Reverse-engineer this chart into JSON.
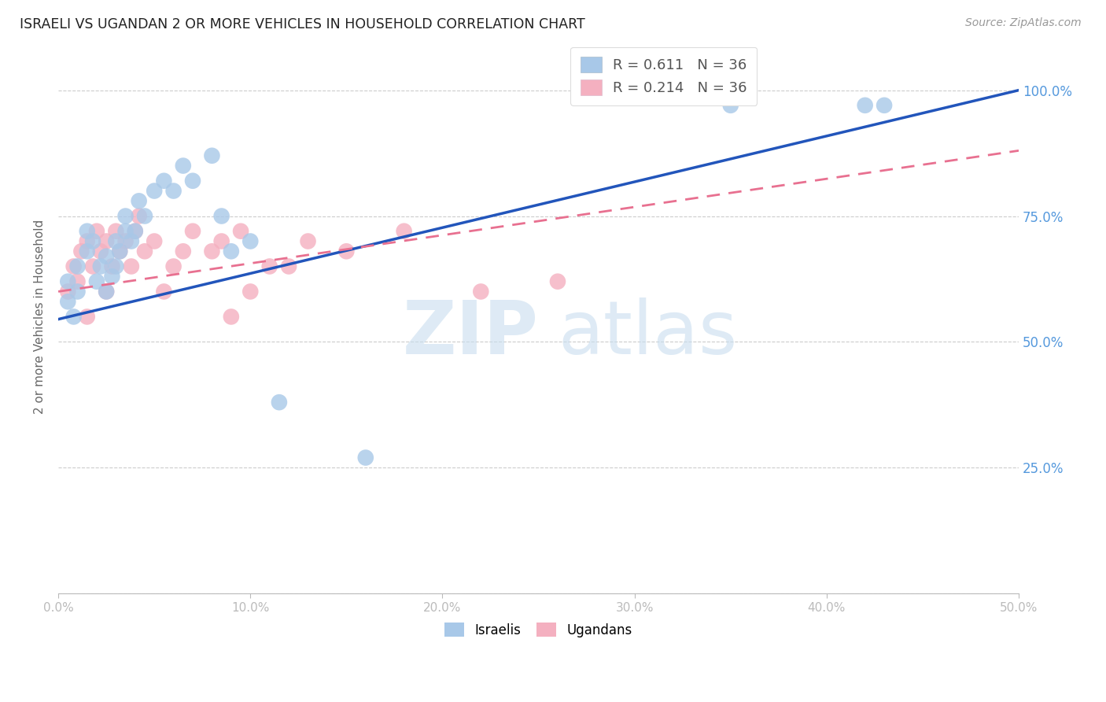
{
  "title": "ISRAELI VS UGANDAN 2 OR MORE VEHICLES IN HOUSEHOLD CORRELATION CHART",
  "source": "Source: ZipAtlas.com",
  "ylabel": "2 or more Vehicles in Household",
  "xmin": 0.0,
  "xmax": 0.5,
  "ymin": 0.0,
  "ymax": 1.1,
  "yticks": [
    0.0,
    0.25,
    0.5,
    0.75,
    1.0
  ],
  "ytick_labels": [
    "",
    "25.0%",
    "50.0%",
    "75.0%",
    "100.0%"
  ],
  "xticks": [
    0.0,
    0.1,
    0.2,
    0.3,
    0.4,
    0.5
  ],
  "xtick_labels": [
    "0.0%",
    "10.0%",
    "20.0%",
    "30.0%",
    "40.0%",
    "50.0%"
  ],
  "israeli_R": 0.611,
  "ugandan_R": 0.214,
  "N": 36,
  "israeli_color": "#A8C8E8",
  "ugandan_color": "#F4B0C0",
  "trend_israeli_color": "#2255BB",
  "trend_ugandan_color": "#E87090",
  "israeli_x": [
    0.005,
    0.005,
    0.008,
    0.01,
    0.01,
    0.015,
    0.015,
    0.018,
    0.02,
    0.022,
    0.025,
    0.025,
    0.028,
    0.03,
    0.03,
    0.032,
    0.035,
    0.035,
    0.038,
    0.04,
    0.042,
    0.045,
    0.05,
    0.055,
    0.06,
    0.065,
    0.07,
    0.08,
    0.085,
    0.09,
    0.1,
    0.115,
    0.16,
    0.35,
    0.42,
    0.43
  ],
  "israeli_y": [
    0.58,
    0.62,
    0.55,
    0.6,
    0.65,
    0.68,
    0.72,
    0.7,
    0.62,
    0.65,
    0.6,
    0.67,
    0.63,
    0.65,
    0.7,
    0.68,
    0.72,
    0.75,
    0.7,
    0.72,
    0.78,
    0.75,
    0.8,
    0.82,
    0.8,
    0.85,
    0.82,
    0.87,
    0.75,
    0.68,
    0.7,
    0.38,
    0.27,
    0.97,
    0.97,
    0.97
  ],
  "ugandan_x": [
    0.005,
    0.008,
    0.01,
    0.012,
    0.015,
    0.015,
    0.018,
    0.02,
    0.022,
    0.025,
    0.025,
    0.028,
    0.03,
    0.032,
    0.035,
    0.038,
    0.04,
    0.042,
    0.045,
    0.05,
    0.055,
    0.06,
    0.065,
    0.07,
    0.08,
    0.085,
    0.09,
    0.095,
    0.1,
    0.11,
    0.12,
    0.13,
    0.15,
    0.18,
    0.22,
    0.26
  ],
  "ugandan_y": [
    0.6,
    0.65,
    0.62,
    0.68,
    0.55,
    0.7,
    0.65,
    0.72,
    0.68,
    0.6,
    0.7,
    0.65,
    0.72,
    0.68,
    0.7,
    0.65,
    0.72,
    0.75,
    0.68,
    0.7,
    0.6,
    0.65,
    0.68,
    0.72,
    0.68,
    0.7,
    0.55,
    0.72,
    0.6,
    0.65,
    0.65,
    0.7,
    0.68,
    0.72,
    0.6,
    0.62
  ],
  "isr_trend_x0": 0.0,
  "isr_trend_y0": 0.545,
  "isr_trend_x1": 0.5,
  "isr_trend_y1": 1.0,
  "uga_trend_x0": 0.0,
  "uga_trend_y0": 0.6,
  "uga_trend_x1": 0.5,
  "uga_trend_y1": 0.88
}
